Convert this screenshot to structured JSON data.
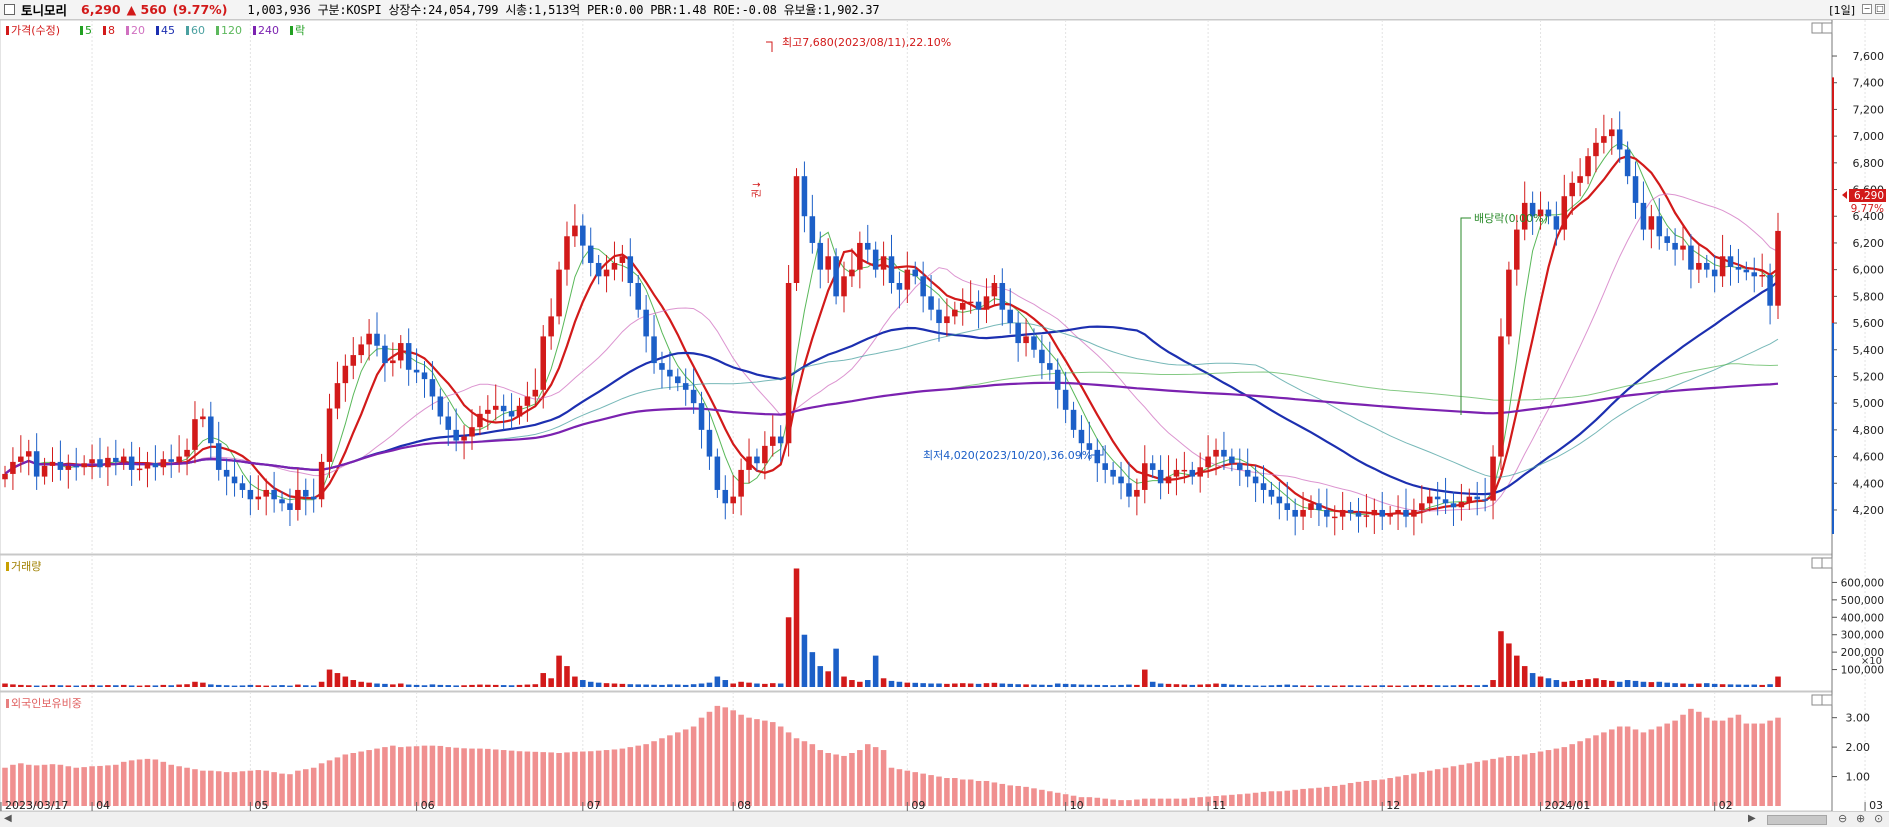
{
  "header": {
    "name": "토니모리",
    "price": "6,290",
    "change": "▲ 560",
    "change_pct": "(9.77%)",
    "info": "1,003,936  구분:KOSPI 상장수:24,054,799 시총:1,513억 PER:0.00 PBR:1.48 ROE:-0.08 유보율:1,902.37",
    "period": "[1일]",
    "up_color": "#d21a1a",
    "down_color": "#1c5fc7"
  },
  "legend": {
    "price": "가격(수정)",
    "ma": [
      "5",
      "8",
      "20",
      "45",
      "60",
      "120",
      "240"
    ],
    "ma_colors": [
      "#22a022",
      "#d21a1a",
      "#d070c0",
      "#1c2fb0",
      "#4aa0a0",
      "#5cb85c",
      "#7b22b0"
    ],
    "extra": "락"
  },
  "panels": {
    "volume_label": "거래량",
    "foreign_label": "외국인보유비중",
    "volume_unit": "×10"
  },
  "annotations": {
    "high": "최고7,680(2023/08/11),22.10%",
    "low": "최저4,020(2023/10/20),36.09%",
    "dividend": "배당락(0.00%)",
    "split": "권↓"
  },
  "axis": {
    "price_ticks": [
      "7,600",
      "7,400",
      "7,200",
      "7,000",
      "6,800",
      "6,600",
      "6,400",
      "6,200",
      "6,000",
      "5,800",
      "5,600",
      "5,400",
      "5,200",
      "5,000",
      "4,800",
      "4,600",
      "4,400",
      "4,200"
    ],
    "current_price_tag": "6,290",
    "current_pct_tag": "9.77%",
    "volume_ticks": [
      "600,000",
      "500,000",
      "400,000",
      "300,000",
      "200,000",
      "100,000"
    ],
    "foreign_ticks": [
      "3.00",
      "2.00",
      "1.00"
    ],
    "x_labels": [
      "2023/03/17",
      "04",
      "05",
      "06",
      "07",
      "08",
      "09",
      "10",
      "11",
      "12",
      "2024/01",
      "02",
      "03"
    ]
  },
  "chart_data": {
    "type": "candlestick",
    "price_range": [
      4020,
      7680
    ],
    "volume_range": [
      0,
      700000
    ],
    "foreign_range": [
      0,
      3.6
    ],
    "months": [
      {
        "label": "2023/03/17",
        "start_index": 0
      },
      {
        "label": "04",
        "start_index": 11
      },
      {
        "label": "05",
        "start_index": 31
      },
      {
        "label": "06",
        "start_index": 52
      },
      {
        "label": "07",
        "start_index": 73
      },
      {
        "label": "08",
        "start_index": 92
      },
      {
        "label": "09",
        "start_index": 114
      },
      {
        "label": "10",
        "start_index": 134
      },
      {
        "label": "11",
        "start_index": 152
      },
      {
        "label": "12",
        "start_index": 174
      },
      {
        "label": "2024/01",
        "start_index": 194
      },
      {
        "label": "02",
        "start_index": 216
      },
      {
        "label": "03",
        "start_index": 235
      }
    ],
    "closes": [
      4470,
      4560,
      4600,
      4640,
      4450,
      4530,
      4560,
      4500,
      4530,
      4520,
      4550,
      4580,
      4520,
      4590,
      4560,
      4600,
      4500,
      4510,
      4550,
      4520,
      4580,
      4560,
      4600,
      4650,
      4880,
      4900,
      4700,
      4500,
      4450,
      4400,
      4350,
      4280,
      4300,
      4350,
      4280,
      4250,
      4200,
      4350,
      4300,
      4280,
      4560,
      4960,
      5150,
      5280,
      5360,
      5440,
      5520,
      5430,
      5300,
      5320,
      5450,
      5250,
      5230,
      5180,
      5050,
      4900,
      4800,
      4720,
      4750,
      4820,
      4920,
      4950,
      4980,
      4940,
      4900,
      4980,
      5050,
      5100,
      5500,
      5650,
      6000,
      6250,
      6330,
      6180,
      6050,
      5950,
      6000,
      6050,
      6100,
      5900,
      5700,
      5500,
      5300,
      5250,
      5200,
      5150,
      5100,
      5000,
      4800,
      4600,
      4350,
      4250,
      4300,
      4500,
      4600,
      4550,
      4680,
      4750,
      4700,
      5900,
      6700,
      6400,
      6200,
      6000,
      6100,
      5800,
      5950,
      6000,
      6200,
      6150,
      6000,
      6100,
      5900,
      5850,
      6000,
      5950,
      5800,
      5700,
      5600,
      5650,
      5700,
      5750,
      5760,
      5700,
      5800,
      5900,
      5700,
      5600,
      5450,
      5500,
      5400,
      5300,
      5250,
      5100,
      4950,
      4800,
      4700,
      4650,
      4550,
      4500,
      4450,
      4400,
      4300,
      4350,
      4550,
      4500,
      4400,
      4450,
      4500,
      4500,
      4450,
      4520,
      4600,
      4650,
      4600,
      4550,
      4500,
      4450,
      4400,
      4350,
      4300,
      4250,
      4200,
      4150,
      4200,
      4250,
      4200,
      4150,
      4150,
      4200,
      4180,
      4150,
      4160,
      4200,
      4150,
      4170,
      4200,
      4150,
      4200,
      4250,
      4300,
      4280,
      4250,
      4220,
      4260,
      4300,
      4280,
      4270,
      4600,
      5500,
      6000,
      6300,
      6500,
      6400,
      6450,
      6400,
      6300,
      6550,
      6650,
      6700,
      6850,
      6950,
      7000,
      7050,
      6900,
      6700,
      6500,
      6300,
      6400,
      6250,
      6200,
      6150,
      6180,
      6000,
      6050,
      6000,
      5950,
      6100,
      6020,
      6000,
      5980,
      5950,
      5960,
      5730,
      6290
    ],
    "volumes": [
      20000,
      15000,
      12000,
      10000,
      8000,
      9000,
      12000,
      10000,
      9000,
      8000,
      10000,
      12000,
      9000,
      11000,
      10000,
      12000,
      9000,
      8000,
      10000,
      9000,
      12000,
      10000,
      14000,
      16000,
      30000,
      25000,
      15000,
      12000,
      10000,
      8000,
      9000,
      12000,
      10000,
      8000,
      9000,
      11000,
      8000,
      14000,
      10000,
      9000,
      30000,
      100000,
      80000,
      60000,
      40000,
      30000,
      25000,
      20000,
      18000,
      15000,
      20000,
      14000,
      12000,
      10000,
      15000,
      12000,
      11000,
      9000,
      10000,
      12000,
      14000,
      13000,
      12000,
      11000,
      10000,
      12000,
      14000,
      16000,
      80000,
      50000,
      180000,
      120000,
      60000,
      40000,
      30000,
      25000,
      22000,
      20000,
      18000,
      16000,
      15000,
      14000,
      13000,
      12000,
      15000,
      14000,
      12000,
      16000,
      20000,
      25000,
      60000,
      40000,
      20000,
      30000,
      25000,
      20000,
      18000,
      22000,
      20000,
      400000,
      680000,
      300000,
      200000,
      120000,
      90000,
      220000,
      60000,
      40000,
      30000,
      40000,
      180000,
      50000,
      35000,
      30000,
      25000,
      24000,
      22000,
      20000,
      20000,
      18000,
      20000,
      22000,
      20000,
      18000,
      22000,
      24000,
      20000,
      18000,
      16000,
      15000,
      14000,
      13000,
      12000,
      20000,
      18000,
      16000,
      14000,
      13000,
      12000,
      11000,
      10000,
      12000,
      14000,
      12000,
      100000,
      30000,
      20000,
      18000,
      16000,
      14000,
      12000,
      14000,
      16000,
      20000,
      18000,
      14000,
      12000,
      10000,
      9000,
      8000,
      10000,
      12000,
      14000,
      10000,
      9000,
      8000,
      10000,
      9000,
      8000,
      9000,
      10000,
      9000,
      8000,
      9000,
      10000,
      9000,
      8000,
      9000,
      10000,
      12000,
      11000,
      10000,
      9000,
      10000,
      12000,
      11000,
      10000,
      12000,
      40000,
      320000,
      250000,
      180000,
      120000,
      80000,
      60000,
      50000,
      40000,
      30000,
      35000,
      40000,
      45000,
      50000,
      40000,
      35000,
      30000,
      40000,
      35000,
      30000,
      28000,
      30000,
      25000,
      22000,
      20000,
      18000,
      20000,
      22000,
      18000,
      16000,
      15000,
      14000,
      13000,
      14000,
      12000,
      16000,
      60000,
      85000
    ],
    "foreign_pct": [
      1.3,
      1.4,
      1.45,
      1.4,
      1.38,
      1.4,
      1.42,
      1.4,
      1.35,
      1.3,
      1.32,
      1.35,
      1.36,
      1.38,
      1.4,
      1.5,
      1.55,
      1.58,
      1.6,
      1.58,
      1.5,
      1.4,
      1.35,
      1.3,
      1.25,
      1.2,
      1.2,
      1.18,
      1.15,
      1.15,
      1.18,
      1.2,
      1.22,
      1.2,
      1.15,
      1.1,
      1.08,
      1.2,
      1.25,
      1.3,
      1.45,
      1.55,
      1.65,
      1.75,
      1.8,
      1.85,
      1.9,
      1.95,
      2.0,
      2.05,
      2.0,
      2.02,
      2.03,
      2.05,
      2.05,
      2.04,
      2.0,
      1.98,
      1.96,
      1.95,
      1.95,
      1.94,
      1.92,
      1.9,
      1.88,
      1.86,
      1.85,
      1.84,
      1.83,
      1.82,
      1.8,
      1.82,
      1.84,
      1.85,
      1.86,
      1.88,
      1.9,
      1.92,
      1.95,
      2.0,
      2.05,
      2.1,
      2.2,
      2.3,
      2.4,
      2.5,
      2.6,
      2.7,
      3.0,
      3.2,
      3.4,
      3.35,
      3.25,
      3.1,
      3.0,
      2.95,
      2.9,
      2.85,
      2.7,
      2.5,
      2.3,
      2.2,
      2.1,
      1.9,
      1.8,
      1.75,
      1.7,
      1.8,
      1.9,
      2.1,
      2.0,
      1.9,
      1.3,
      1.25,
      1.2,
      1.15,
      1.1,
      1.05,
      1.0,
      0.95,
      0.95,
      0.9,
      0.9,
      0.85,
      0.85,
      0.8,
      0.75,
      0.7,
      0.68,
      0.65,
      0.6,
      0.55,
      0.5,
      0.45,
      0.4,
      0.35,
      0.3,
      0.3,
      0.28,
      0.25,
      0.22,
      0.2,
      0.2,
      0.22,
      0.25,
      0.25,
      0.25,
      0.25,
      0.25,
      0.25,
      0.28,
      0.3,
      0.32,
      0.34,
      0.36,
      0.38,
      0.4,
      0.42,
      0.45,
      0.48,
      0.5,
      0.5,
      0.52,
      0.55,
      0.58,
      0.6,
      0.62,
      0.65,
      0.68,
      0.72,
      0.78,
      0.82,
      0.85,
      0.88,
      0.9,
      0.95,
      1.0,
      1.05,
      1.1,
      1.15,
      1.2,
      1.25,
      1.3,
      1.35,
      1.4,
      1.45,
      1.5,
      1.55,
      1.6,
      1.65,
      1.7,
      1.7,
      1.75,
      1.8,
      1.85,
      1.9,
      1.95,
      2.0,
      2.1,
      2.2,
      2.3,
      2.4,
      2.5,
      2.6,
      2.7,
      2.7,
      2.6,
      2.5,
      2.6,
      2.7,
      2.8,
      2.9,
      3.1,
      3.3,
      3.2,
      3.0,
      2.9,
      2.9,
      3.0,
      3.1,
      2.8,
      2.8,
      2.8,
      2.9,
      3.0,
      2.9,
      2.8,
      2.8,
      2.7,
      3.4,
      3.45
    ]
  }
}
